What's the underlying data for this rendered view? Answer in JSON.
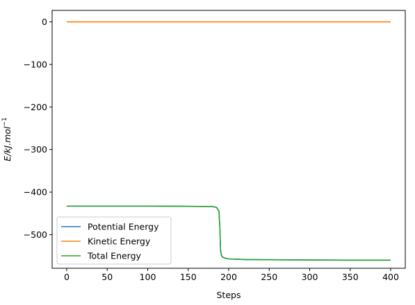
{
  "chart_data": {
    "type": "line",
    "title": "",
    "xlabel": "Steps",
    "ylabel_main": "E/kJ.mol",
    "ylabel_sup": "−1",
    "xlim": [
      -18,
      418
    ],
    "ylim": [
      -579,
      27
    ],
    "xticks": [
      0,
      50,
      100,
      150,
      200,
      250,
      300,
      350,
      400
    ],
    "yticks": [
      0,
      -100,
      -200,
      -300,
      -400,
      -500
    ],
    "xtick_labels": [
      "0",
      "50",
      "100",
      "150",
      "200",
      "250",
      "300",
      "350",
      "400"
    ],
    "ytick_labels": [
      "0",
      "−100",
      "−200",
      "−300",
      "−400",
      "−500"
    ],
    "legend_position": "lower-left",
    "grid": false,
    "series": [
      {
        "name": "Potential Energy",
        "color": "#1f77b4",
        "x": [
          0,
          50,
          100,
          150,
          180,
          185,
          188,
          189,
          190,
          191,
          192,
          195,
          200,
          220,
          250,
          300,
          350,
          400
        ],
        "y": [
          -433,
          -433,
          -433,
          -433.5,
          -434,
          -436,
          -445,
          -480,
          -538,
          -548,
          -552,
          -555,
          -557,
          -558.5,
          -559,
          -559.5,
          -560,
          -560
        ]
      },
      {
        "name": "Kinetic Energy",
        "color": "#ff7f0e",
        "x": [
          0,
          100,
          200,
          300,
          400
        ],
        "y": [
          0,
          0,
          0,
          0,
          0
        ]
      },
      {
        "name": "Total Energy",
        "color": "#2ca02c",
        "x": [
          0,
          50,
          100,
          150,
          180,
          185,
          188,
          189,
          190,
          191,
          192,
          195,
          200,
          220,
          250,
          300,
          350,
          400
        ],
        "y": [
          -433,
          -433,
          -433,
          -433.5,
          -434,
          -436,
          -445,
          -480,
          -538,
          -548,
          -552,
          -555,
          -557,
          -558.5,
          -559,
          -559.5,
          -560,
          -560
        ]
      }
    ]
  }
}
